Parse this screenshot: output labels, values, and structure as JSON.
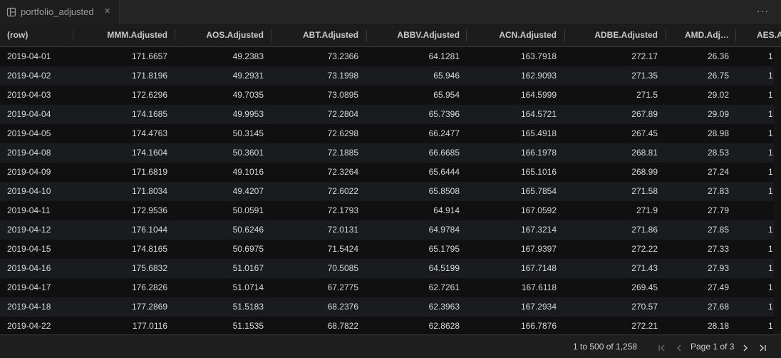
{
  "tab": {
    "title": "portfolio_adjusted",
    "icon": "table-view-icon",
    "close": "×",
    "more": "···"
  },
  "columns": [
    "(row)",
    "MMM.Adjusted",
    "AOS.Adjusted",
    "ABT.Adjusted",
    "ABBV.Adjusted",
    "ACN.Adjusted",
    "ADBE.Adjusted",
    "AMD.Adj…",
    "AES.A"
  ],
  "rows": [
    [
      "2019-04-01",
      "171.6657",
      "49.2383",
      "73.2366",
      "64.1281",
      "163.7918",
      "272.17",
      "26.36",
      "1"
    ],
    [
      "2019-04-02",
      "171.8196",
      "49.2931",
      "73.1998",
      "65.946",
      "162.9093",
      "271.35",
      "26.75",
      "1"
    ],
    [
      "2019-04-03",
      "172.6296",
      "49.7035",
      "73.0895",
      "65.954",
      "164.5999",
      "271.5",
      "29.02",
      "1"
    ],
    [
      "2019-04-04",
      "174.1685",
      "49.9953",
      "72.2804",
      "65.7396",
      "164.5721",
      "267.89",
      "29.09",
      "1"
    ],
    [
      "2019-04-05",
      "174.4763",
      "50.3145",
      "72.6298",
      "66.2477",
      "165.4918",
      "267.45",
      "28.98",
      "1"
    ],
    [
      "2019-04-08",
      "174.1604",
      "50.3601",
      "72.1885",
      "66.6685",
      "166.1978",
      "268.81",
      "28.53",
      "1"
    ],
    [
      "2019-04-09",
      "171.6819",
      "49.1016",
      "72.3264",
      "65.6444",
      "165.1016",
      "268.99",
      "27.24",
      "1"
    ],
    [
      "2019-04-10",
      "171.8034",
      "49.4207",
      "72.6022",
      "65.8508",
      "165.7854",
      "271.58",
      "27.83",
      "1"
    ],
    [
      "2019-04-11",
      "172.9536",
      "50.0591",
      "72.1793",
      "64.914",
      "167.0592",
      "271.9",
      "27.79",
      ""
    ],
    [
      "2019-04-12",
      "176.1044",
      "50.6246",
      "72.0131",
      "64.9784",
      "167.3214",
      "271.86",
      "27.85",
      "1"
    ],
    [
      "2019-04-15",
      "174.8165",
      "50.6975",
      "71.5424",
      "65.1795",
      "167.9397",
      "272.22",
      "27.33",
      "1"
    ],
    [
      "2019-04-16",
      "175.6832",
      "51.0167",
      "70.5085",
      "64.5199",
      "167.7148",
      "271.43",
      "27.93",
      "1"
    ],
    [
      "2019-04-17",
      "176.2826",
      "51.0714",
      "67.2775",
      "62.7261",
      "167.6118",
      "269.45",
      "27.49",
      "1"
    ],
    [
      "2019-04-18",
      "177.2869",
      "51.5183",
      "68.2376",
      "62.3963",
      "167.2934",
      "270.57",
      "27.68",
      "1"
    ],
    [
      "2019-04-22",
      "177.0116",
      "51.1535",
      "68.7822",
      "62.8628",
      "166.7876",
      "272.21",
      "28.18",
      "1"
    ]
  ],
  "footer": {
    "range": "1 to 500 of 1,258",
    "page": "Page 1 of 3",
    "first": "|<",
    "prev": "<",
    "next": ">",
    "last": ">|"
  }
}
